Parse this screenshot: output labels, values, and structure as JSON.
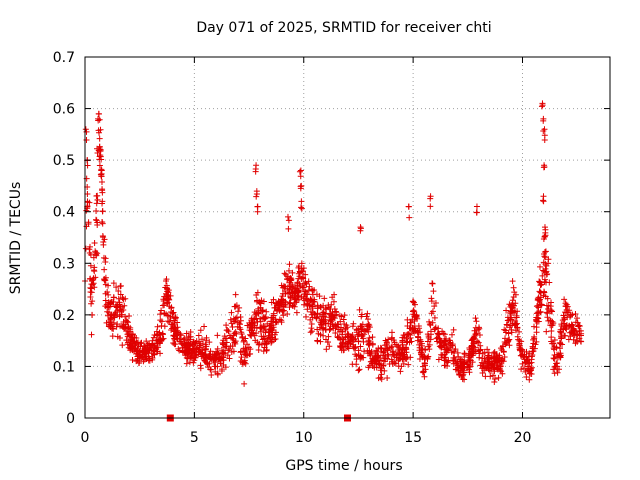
{
  "chart_data": {
    "type": "scatter",
    "title": "Day 071 of 2025, SRMTID for receiver chti",
    "xlabel": "GPS time / hours",
    "ylabel": "SRMTID / TECUs",
    "xlim": [
      0,
      24
    ],
    "ylim": [
      0,
      0.7
    ],
    "xticks": [
      0,
      5,
      10,
      15,
      20
    ],
    "yticks": [
      0,
      0.1,
      0.2,
      0.3,
      0.4,
      0.5,
      0.6,
      0.7
    ],
    "grid": true,
    "marker": "plus",
    "series_color": "#e00000",
    "gap_markers_x": [
      3.9,
      12.0
    ],
    "gap_marker_y": 0,
    "anchors": [
      [
        0.0,
        0.3,
        0.1
      ],
      [
        0.1,
        0.46,
        0.08
      ],
      [
        0.3,
        0.22,
        0.07
      ],
      [
        0.55,
        0.4,
        0.12
      ],
      [
        0.7,
        0.55,
        0.04
      ],
      [
        0.9,
        0.26,
        0.06
      ],
      [
        1.2,
        0.18,
        0.05
      ],
      [
        1.5,
        0.22,
        0.06
      ],
      [
        1.8,
        0.2,
        0.07
      ],
      [
        2.1,
        0.15,
        0.04
      ],
      [
        2.5,
        0.12,
        0.03
      ],
      [
        3.0,
        0.13,
        0.03
      ],
      [
        3.4,
        0.15,
        0.04
      ],
      [
        3.7,
        0.24,
        0.05
      ],
      [
        4.1,
        0.17,
        0.04
      ],
      [
        4.5,
        0.14,
        0.03
      ],
      [
        5.0,
        0.13,
        0.03
      ],
      [
        5.4,
        0.14,
        0.04
      ],
      [
        5.8,
        0.11,
        0.04
      ],
      [
        6.2,
        0.12,
        0.04
      ],
      [
        6.6,
        0.15,
        0.05
      ],
      [
        7.0,
        0.19,
        0.06
      ],
      [
        7.3,
        0.11,
        0.04
      ],
      [
        7.7,
        0.18,
        0.06
      ],
      [
        8.0,
        0.2,
        0.07
      ],
      [
        8.3,
        0.16,
        0.05
      ],
      [
        8.7,
        0.19,
        0.05
      ],
      [
        9.0,
        0.22,
        0.05
      ],
      [
        9.3,
        0.26,
        0.05
      ],
      [
        9.6,
        0.23,
        0.04
      ],
      [
        9.9,
        0.28,
        0.07
      ],
      [
        10.2,
        0.22,
        0.06
      ],
      [
        10.6,
        0.2,
        0.06
      ],
      [
        11.0,
        0.18,
        0.05
      ],
      [
        11.4,
        0.2,
        0.05
      ],
      [
        11.8,
        0.16,
        0.05
      ],
      [
        12.4,
        0.14,
        0.05
      ],
      [
        12.8,
        0.17,
        0.06
      ],
      [
        13.2,
        0.12,
        0.04
      ],
      [
        13.6,
        0.11,
        0.04
      ],
      [
        14.0,
        0.13,
        0.04
      ],
      [
        14.4,
        0.12,
        0.04
      ],
      [
        14.8,
        0.15,
        0.05
      ],
      [
        15.1,
        0.2,
        0.05
      ],
      [
        15.5,
        0.1,
        0.03
      ],
      [
        15.9,
        0.21,
        0.07
      ],
      [
        16.3,
        0.13,
        0.04
      ],
      [
        16.7,
        0.14,
        0.04
      ],
      [
        17.1,
        0.1,
        0.03
      ],
      [
        17.5,
        0.1,
        0.03
      ],
      [
        17.9,
        0.16,
        0.05
      ],
      [
        18.2,
        0.11,
        0.04
      ],
      [
        18.6,
        0.1,
        0.03
      ],
      [
        19.0,
        0.11,
        0.04
      ],
      [
        19.3,
        0.17,
        0.06
      ],
      [
        19.6,
        0.22,
        0.05
      ],
      [
        20.0,
        0.11,
        0.03
      ],
      [
        20.4,
        0.1,
        0.03
      ],
      [
        20.8,
        0.24,
        0.07
      ],
      [
        21.0,
        0.3,
        0.12
      ],
      [
        21.3,
        0.18,
        0.06
      ],
      [
        21.6,
        0.1,
        0.04
      ],
      [
        21.9,
        0.2,
        0.05
      ],
      [
        22.3,
        0.17,
        0.04
      ],
      [
        22.7,
        0.16,
        0.03
      ]
    ],
    "spikes": [
      [
        0.05,
        0.56
      ],
      [
        0.1,
        0.5
      ],
      [
        0.12,
        0.42
      ],
      [
        0.6,
        0.58
      ],
      [
        0.65,
        0.59
      ],
      [
        0.7,
        0.52
      ],
      [
        0.75,
        0.48
      ],
      [
        0.8,
        0.42
      ],
      [
        0.8,
        0.38
      ],
      [
        7.8,
        0.49
      ],
      [
        7.85,
        0.44
      ],
      [
        7.9,
        0.41
      ],
      [
        9.3,
        0.39
      ],
      [
        9.85,
        0.48
      ],
      [
        9.88,
        0.45
      ],
      [
        9.9,
        0.42
      ],
      [
        12.6,
        0.37
      ],
      [
        14.8,
        0.41
      ],
      [
        15.8,
        0.43
      ],
      [
        17.9,
        0.41
      ],
      [
        20.9,
        0.61
      ],
      [
        20.95,
        0.58
      ],
      [
        21.0,
        0.56
      ],
      [
        21.0,
        0.49
      ],
      [
        20.95,
        0.43
      ],
      [
        21.05,
        0.37
      ]
    ],
    "point_count": 2200
  }
}
